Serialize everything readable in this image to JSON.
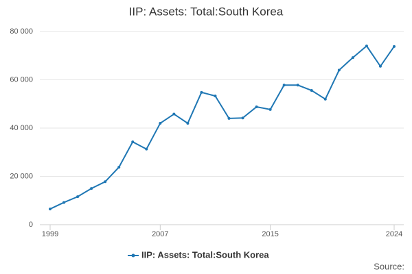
{
  "chart_data": {
    "type": "line",
    "title": "IIP: Assets: Total:South Korea",
    "x": [
      1999,
      2000,
      2001,
      2002,
      2003,
      2004,
      2005,
      2006,
      2007,
      2008,
      2009,
      2010,
      2011,
      2012,
      2013,
      2014,
      2015,
      2016,
      2017,
      2018,
      2019,
      2020,
      2021,
      2022,
      2023,
      2024
    ],
    "series": [
      {
        "name": "IIP: Assets: Total:South Korea",
        "color": "#1f77b4",
        "values": [
          6500,
          9200,
          11600,
          15000,
          17800,
          23800,
          34300,
          31300,
          42000,
          45800,
          42000,
          54800,
          53300,
          44000,
          44200,
          48800,
          47700,
          57800,
          57800,
          55600,
          52000,
          64000,
          69200,
          74000,
          65600,
          73800
        ]
      }
    ],
    "xlim": [
      1999,
      2024
    ],
    "xticks": [
      1999,
      2007,
      2015,
      2024
    ],
    "ylim": [
      0,
      80000
    ],
    "yticks": [
      0,
      {
        "value": 20000,
        "label": "20 000"
      },
      {
        "value": 40000,
        "label": "40 000"
      },
      {
        "value": 60000,
        "label": "60 000"
      },
      {
        "value": 80000,
        "label": "80 000"
      }
    ],
    "grid": true,
    "source": "Source:"
  }
}
